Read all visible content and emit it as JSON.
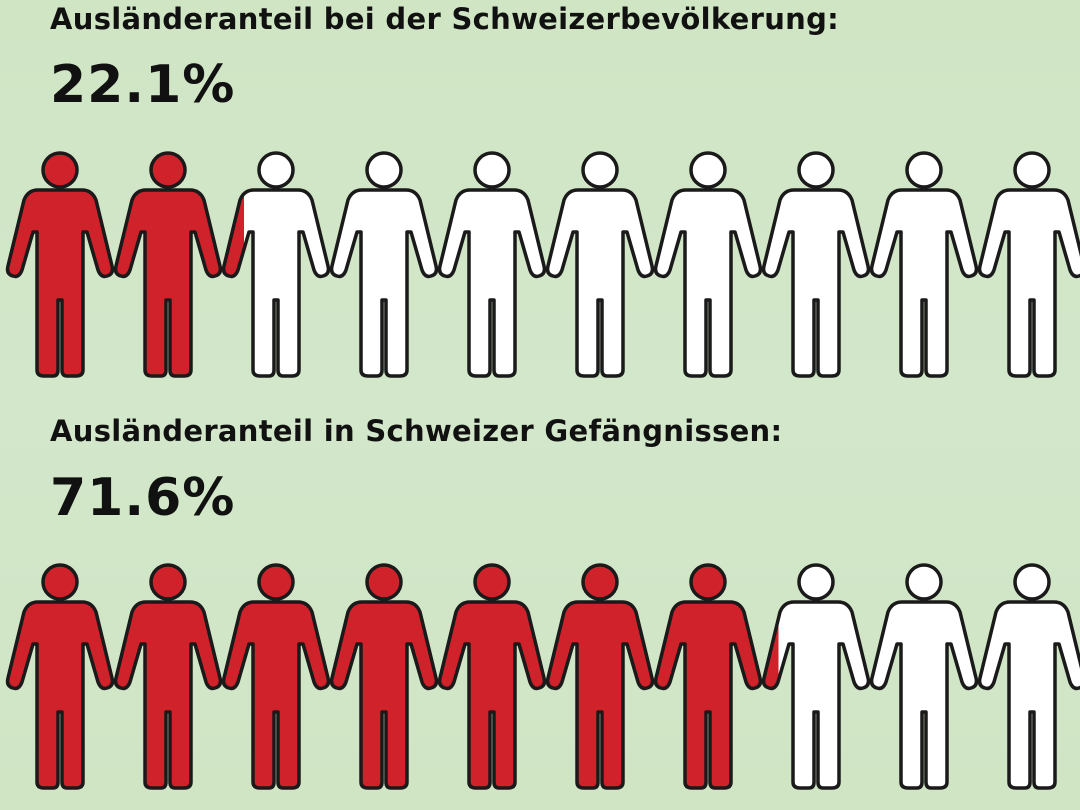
{
  "chart_data": [
    {
      "type": "pictogram",
      "title": "Ausländeranteil bei der Schweizerbevölkerung:",
      "value_label": "22.1%",
      "value": 22.1,
      "icons_total": 10,
      "fill_color": "#d0222b",
      "empty_color": "#ffffff",
      "outline_color": "#1a1a1a"
    },
    {
      "type": "pictogram",
      "title": "Ausländeranteil in Schweizer Gefängnissen:",
      "value_label": "71.6%",
      "value": 71.6,
      "icons_total": 10,
      "fill_color": "#d0222b",
      "empty_color": "#ffffff",
      "outline_color": "#1a1a1a"
    }
  ]
}
